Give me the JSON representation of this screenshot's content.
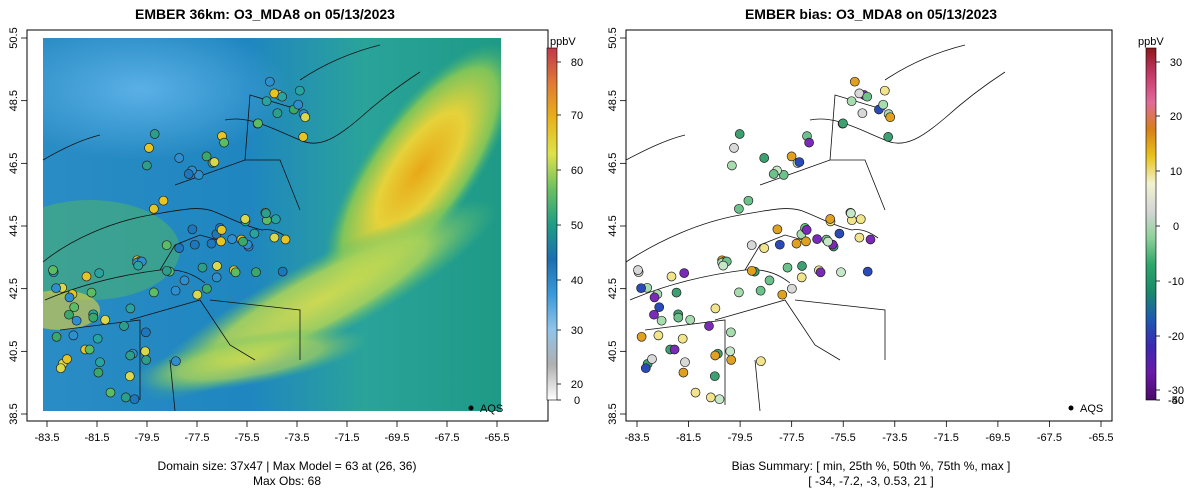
{
  "left_panel": {
    "title": "EMBER 36km: O3_MDA8 on 05/13/2023",
    "footer_line1": "Domain size: 37x47 | Max Model = 63 at (26, 36)",
    "footer_line2": "Max Obs: 68",
    "legend_label": "AQS",
    "colorbar": {
      "unit": "ppbV",
      "ticks": [
        "80",
        "70",
        "60",
        "50",
        "40",
        "30",
        "20",
        "0"
      ],
      "stops": [
        "#c0394b",
        "#e07a35",
        "#e8b21a",
        "#dfe24a",
        "#6cc060",
        "#1f9e84",
        "#1b6fb0",
        "#3a9ad9",
        "#8fc4ea",
        "#b0b0b0",
        "#ffffff"
      ]
    }
  },
  "right_panel": {
    "title": "EMBER bias: O3_MDA8 on 05/13/2023",
    "footer_line1": "Bias Summary: [ min, 25th %, 50th %, 75th %, max ]",
    "footer_line2": "[ -34,   -7.2,   -3,   0.53,   21 ]",
    "legend_label": "AQS",
    "colorbar": {
      "unit": "ppbV",
      "ticks": [
        "30",
        "20",
        "10",
        "0",
        "-10",
        "-20",
        "-30",
        "-40",
        "-50"
      ],
      "stops": [
        "#8b1a1a",
        "#c43a6a",
        "#e06a9a",
        "#d6801a",
        "#e8c31a",
        "#f2f2d0",
        "#d6d6d6",
        "#8fd19a",
        "#2ea66a",
        "#1a8a6a",
        "#1f5ab0",
        "#3a2ab0",
        "#6a1aa8",
        "#4a0a6a"
      ]
    }
  },
  "x_ticks": [
    "-83.5",
    "-81.5",
    "-79.5",
    "-77.5",
    "-75.5",
    "-73.5",
    "-71.5",
    "-69.5",
    "-67.5",
    "-65.5"
  ],
  "y_ticks": [
    "50.5",
    "48.5",
    "46.5",
    "44.5",
    "42.5",
    "40.5",
    "38.5"
  ]
}
